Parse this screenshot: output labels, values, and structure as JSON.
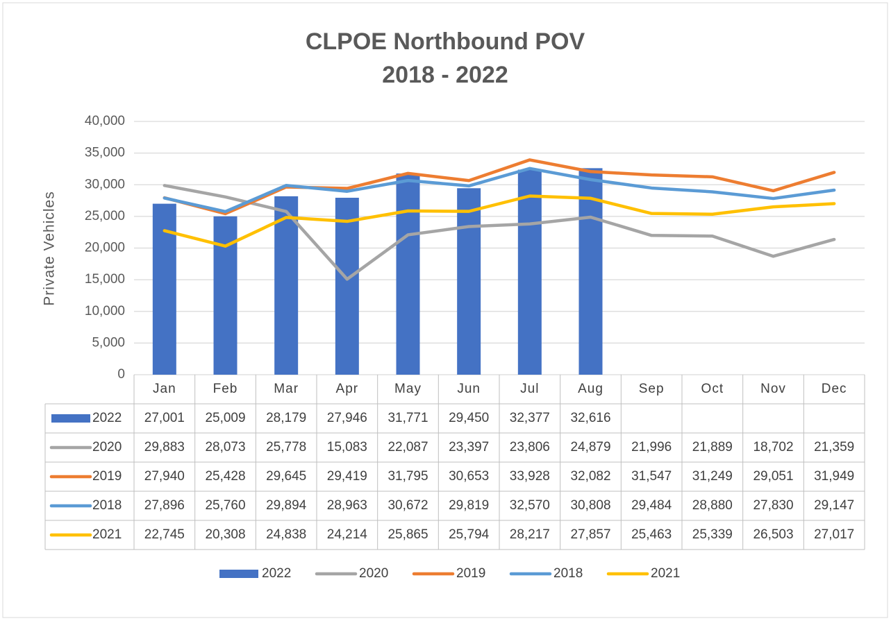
{
  "chart_data": {
    "type": "bar",
    "title": "CLPOE Northbound POV",
    "subtitle": "2018 - 2022",
    "y_label": "Private Vehicles",
    "categories": [
      "Jan",
      "Feb",
      "Mar",
      "Apr",
      "May",
      "Jun",
      "Jul",
      "Aug",
      "Sep",
      "Oct",
      "Nov",
      "Dec"
    ],
    "ylim": [
      0,
      40000
    ],
    "yticks": [
      0,
      {
        "value": 5000,
        "label": "5,000"
      },
      {
        "value": 10000,
        "label": "10,000"
      },
      {
        "value": 15000,
        "label": "15,000"
      },
      {
        "value": 20000,
        "label": "20,000"
      },
      {
        "value": 25000,
        "label": "25,000"
      },
      {
        "value": 30000,
        "label": "30,000"
      },
      {
        "value": 35000,
        "label": "35,000"
      },
      {
        "value": 40000,
        "label": "40,000"
      }
    ],
    "grid": true,
    "legend": "bottom",
    "series": [
      {
        "name": "2022",
        "type": "bar",
        "color": "#4472c4",
        "values": [
          27001,
          25009,
          28179,
          27946,
          31771,
          29450,
          32377,
          32616,
          null,
          null,
          null,
          null
        ],
        "value_labels": [
          "27,001",
          "25,009",
          "28,179",
          "27,946",
          "31,771",
          "29,450",
          "32,377",
          "32,616",
          null,
          null,
          null,
          null
        ]
      },
      {
        "name": "2020",
        "type": "line",
        "color": "#a5a5a5",
        "values": [
          29883,
          28073,
          25778,
          15083,
          22087,
          23397,
          23806,
          24879,
          21996,
          21889,
          18702,
          21359
        ],
        "value_labels": [
          "29,883",
          "28,073",
          "25,778",
          "15,083",
          "22,087",
          "23,397",
          "23,806",
          "24,879",
          "21,996",
          "21,889",
          "18,702",
          "21,359"
        ]
      },
      {
        "name": "2019",
        "type": "line",
        "color": "#ed7d31",
        "values": [
          27940,
          25428,
          29645,
          29419,
          31795,
          30653,
          33928,
          32082,
          31547,
          31249,
          29051,
          31949
        ],
        "value_labels": [
          "27,940",
          "25,428",
          "29,645",
          "29,419",
          "31,795",
          "30,653",
          "33,928",
          "32,082",
          "31,547",
          "31,249",
          "29,051",
          "31,949"
        ]
      },
      {
        "name": "2018",
        "type": "line",
        "color": "#5b9bd5",
        "values": [
          27896,
          25760,
          29894,
          28963,
          30672,
          29819,
          32570,
          30808,
          29484,
          28880,
          27830,
          29147
        ],
        "value_labels": [
          "27,896",
          "25,760",
          "29,894",
          "28,963",
          "30,672",
          "29,819",
          "32,570",
          "30,808",
          "29,484",
          "28,880",
          "27,830",
          "29,147"
        ]
      },
      {
        "name": "2021",
        "type": "line",
        "color": "#ffc000",
        "values": [
          22745,
          20308,
          24838,
          24214,
          25865,
          25794,
          28217,
          27857,
          25463,
          25339,
          26503,
          27017
        ],
        "value_labels": [
          "22,745",
          "20,308",
          "24,838",
          "24,214",
          "25,865",
          "25,794",
          "28,217",
          "27,857",
          "25,463",
          "25,339",
          "26,503",
          "27,017"
        ]
      }
    ]
  }
}
